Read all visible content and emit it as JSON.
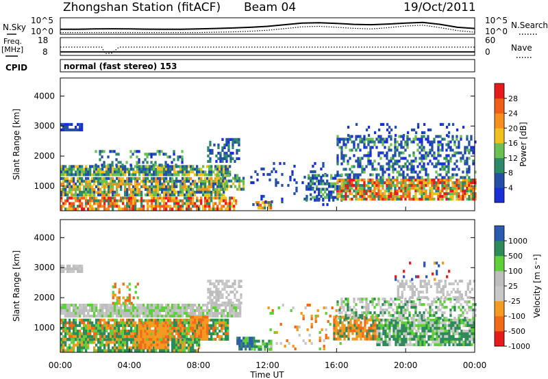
{
  "header": {
    "title": "Zhongshan Station (fitACF)",
    "beam": "Beam 04",
    "date": "19/Oct/2011"
  },
  "colors": {
    "power_scale": [
      "#1a2fd6",
      "#2450a8",
      "#2c8a6a",
      "#6cbf52",
      "#f0c020",
      "#f5901f",
      "#ef5e1a",
      "#e61b1b"
    ],
    "velocity_scale": [
      "#e61b1b",
      "#f06a18",
      "#f59a20",
      "#c8c8c8",
      "#bdbdbd",
      "#5fcf3a",
      "#2f8a5a",
      "#2b5bb0"
    ]
  },
  "chart_data": [
    {
      "type": "line",
      "panel": "noise",
      "left_label": "N.Sky",
      "right_label": "N.Search",
      "yticks_left": [
        "10^5",
        "10^0"
      ],
      "yticks_right": [
        "10^5",
        "10^0"
      ],
      "series": [
        {
          "name": "N.Sky",
          "x": [
            0,
            1,
            2,
            3,
            4,
            5,
            6,
            7,
            8,
            9,
            10,
            11,
            12,
            13,
            14,
            15,
            16,
            17,
            18,
            19,
            20,
            21,
            22,
            23,
            24
          ],
          "values": [
            0.3,
            0.3,
            0.32,
            0.33,
            0.32,
            0.31,
            0.3,
            0.3,
            0.32,
            0.35,
            0.38,
            0.42,
            0.48,
            0.58,
            0.68,
            0.7,
            0.66,
            0.6,
            0.58,
            0.62,
            0.68,
            0.72,
            0.6,
            0.42,
            0.35
          ]
        },
        {
          "name": "N.Search",
          "x": [
            0,
            1,
            2,
            3,
            4,
            5,
            6,
            7,
            8,
            9,
            10,
            11,
            12,
            13,
            14,
            15,
            16,
            17,
            18,
            19,
            20,
            21,
            22,
            23,
            24
          ],
          "values": [
            0.1,
            0.1,
            0.1,
            0.1,
            0.1,
            0.1,
            0.1,
            0.1,
            0.1,
            0.12,
            0.14,
            0.18,
            0.24,
            0.34,
            0.45,
            0.48,
            0.42,
            0.36,
            0.32,
            0.4,
            0.5,
            0.55,
            0.4,
            0.22,
            0.12
          ]
        }
      ]
    },
    {
      "type": "line",
      "panel": "frequency",
      "left_label": "Freq.",
      "left_unit": "[MHz]",
      "right_label": "Nave",
      "yticks_left": [
        "18",
        "8"
      ],
      "yticks_right": [
        "60",
        "0"
      ],
      "series": [
        {
          "name": "Freq.",
          "x": [
            0,
            24
          ],
          "values": [
            10,
            10
          ]
        },
        {
          "name": "Nave",
          "x": [
            0,
            2.4,
            2.6,
            3.0,
            3.4,
            24
          ],
          "values": [
            28,
            28,
            6,
            8,
            28,
            28
          ]
        }
      ]
    },
    {
      "type": "table",
      "panel": "cpid",
      "label": "CPID",
      "text": "normal (fast stereo) 153"
    },
    {
      "type": "heatmap",
      "panel": "power",
      "ylabel": "Slant Range [km]",
      "yticks": [
        1000,
        2000,
        3000,
        4000
      ],
      "ylim": [
        180,
        4600
      ],
      "xlim": [
        0,
        24
      ],
      "colorbar_label": "Power [dB]",
      "colorbar_ticks": [
        4,
        8,
        12,
        16,
        20,
        24,
        28
      ],
      "scatter_bands": [
        {
          "x0": 0.0,
          "x1": 1.2,
          "r0": 2850,
          "r1": 3100,
          "density": 0.85,
          "levels": [
            0,
            1,
            1
          ]
        },
        {
          "x0": 0.0,
          "x1": 9.8,
          "r0": 1350,
          "r1": 1700,
          "density": 0.9,
          "levels": [
            1,
            2,
            3,
            4
          ]
        },
        {
          "x0": 0.0,
          "x1": 9.5,
          "r0": 700,
          "r1": 1300,
          "density": 0.85,
          "levels": [
            1,
            2,
            3,
            4,
            5
          ]
        },
        {
          "x0": 0.0,
          "x1": 10.2,
          "r0": 250,
          "r1": 650,
          "density": 0.75,
          "levels": [
            2,
            4,
            5,
            6,
            7
          ]
        },
        {
          "x0": 2.0,
          "x1": 7.0,
          "r0": 1700,
          "r1": 2200,
          "density": 0.3,
          "levels": [
            0,
            1,
            2,
            3
          ]
        },
        {
          "x0": 8.5,
          "x1": 10.4,
          "r0": 1800,
          "r1": 2600,
          "density": 0.45,
          "levels": [
            0,
            1,
            1,
            2
          ]
        },
        {
          "x0": 9.0,
          "x1": 10.6,
          "r0": 900,
          "r1": 1400,
          "density": 0.7,
          "levels": [
            1,
            2,
            3,
            4
          ]
        },
        {
          "x0": 11.3,
          "x1": 12.2,
          "r0": 250,
          "r1": 500,
          "density": 0.75,
          "levels": [
            2,
            4,
            5,
            6
          ]
        },
        {
          "x0": 11.0,
          "x1": 15.5,
          "r0": 400,
          "r1": 1800,
          "density": 0.12,
          "levels": [
            0,
            1,
            1
          ]
        },
        {
          "x0": 14.2,
          "x1": 16.3,
          "r0": 500,
          "r1": 1400,
          "density": 0.55,
          "levels": [
            0,
            1,
            2,
            3
          ]
        },
        {
          "x0": 16.0,
          "x1": 24.0,
          "r0": 550,
          "r1": 1250,
          "density": 0.85,
          "levels": [
            2,
            3,
            4,
            5,
            6,
            7
          ]
        },
        {
          "x0": 16.0,
          "x1": 24.0,
          "r0": 1300,
          "r1": 2700,
          "density": 0.45,
          "levels": [
            0,
            1,
            1,
            2,
            3
          ]
        },
        {
          "x0": 16.5,
          "x1": 23.5,
          "r0": 2700,
          "r1": 3100,
          "density": 0.12,
          "levels": [
            0,
            1
          ]
        }
      ]
    },
    {
      "type": "heatmap",
      "panel": "velocity",
      "ylabel": "Slant Range [km]",
      "yticks": [
        1000,
        2000,
        3000,
        4000
      ],
      "ylim": [
        180,
        4600
      ],
      "xlim": [
        0,
        24
      ],
      "xticks": [
        "00:00",
        "04:00",
        "08:00",
        "12:00",
        "16:00",
        "20:00",
        "00:00"
      ],
      "xlabel": "Time UT",
      "colorbar_label": "Velocity [m s⁻¹]",
      "colorbar_ticks": [
        1000,
        500,
        100,
        25,
        -25,
        -100,
        -500,
        -1000
      ],
      "scatter_bands": [
        {
          "x0": 0.0,
          "x1": 1.3,
          "r0": 2850,
          "r1": 3100,
          "density": 0.85,
          "levels": [
            3,
            4
          ]
        },
        {
          "x0": 0.0,
          "x1": 10.4,
          "r0": 1350,
          "r1": 1800,
          "density": 0.9,
          "levels": [
            3,
            4,
            4,
            5
          ]
        },
        {
          "x0": 0.0,
          "x1": 9.7,
          "r0": 650,
          "r1": 1300,
          "density": 0.85,
          "levels": [
            5,
            6,
            6,
            1,
            2
          ]
        },
        {
          "x0": 0.0,
          "x1": 8.0,
          "r0": 280,
          "r1": 650,
          "density": 0.8,
          "levels": [
            6,
            6,
            5,
            2
          ]
        },
        {
          "x0": 4.5,
          "x1": 6.2,
          "r0": 300,
          "r1": 1200,
          "density": 0.85,
          "levels": [
            1,
            2,
            2
          ]
        },
        {
          "x0": 7.5,
          "x1": 8.5,
          "r0": 700,
          "r1": 1400,
          "density": 0.8,
          "levels": [
            1,
            2
          ]
        },
        {
          "x0": 3.0,
          "x1": 4.5,
          "r0": 1800,
          "r1": 2500,
          "density": 0.35,
          "levels": [
            1,
            2,
            5
          ]
        },
        {
          "x0": 8.5,
          "x1": 10.5,
          "r0": 1800,
          "r1": 2600,
          "density": 0.55,
          "levels": [
            3,
            4
          ]
        },
        {
          "x0": 10.2,
          "x1": 11.2,
          "r0": 250,
          "r1": 700,
          "density": 0.75,
          "levels": [
            7,
            6,
            5
          ]
        },
        {
          "x0": 11.2,
          "x1": 12.2,
          "r0": 250,
          "r1": 600,
          "density": 0.7,
          "levels": [
            5,
            6
          ]
        },
        {
          "x0": 12.0,
          "x1": 16.2,
          "r0": 300,
          "r1": 1800,
          "density": 0.12,
          "levels": [
            1,
            2,
            5,
            3
          ]
        },
        {
          "x0": 15.8,
          "x1": 18.5,
          "r0": 650,
          "r1": 1400,
          "density": 0.85,
          "levels": [
            1,
            2,
            2,
            6
          ]
        },
        {
          "x0": 18.3,
          "x1": 24.0,
          "r0": 400,
          "r1": 1300,
          "density": 0.85,
          "levels": [
            6,
            6,
            5,
            3
          ]
        },
        {
          "x0": 16.0,
          "x1": 24.0,
          "r0": 1300,
          "r1": 2000,
          "density": 0.5,
          "levels": [
            6,
            5,
            3,
            4
          ]
        },
        {
          "x0": 19.5,
          "x1": 24.0,
          "r0": 2000,
          "r1": 2600,
          "density": 0.45,
          "levels": [
            3,
            4,
            4
          ]
        },
        {
          "x0": 19.0,
          "x1": 22.5,
          "r0": 2600,
          "r1": 3200,
          "density": 0.08,
          "levels": [
            0,
            2,
            7
          ]
        }
      ]
    }
  ]
}
